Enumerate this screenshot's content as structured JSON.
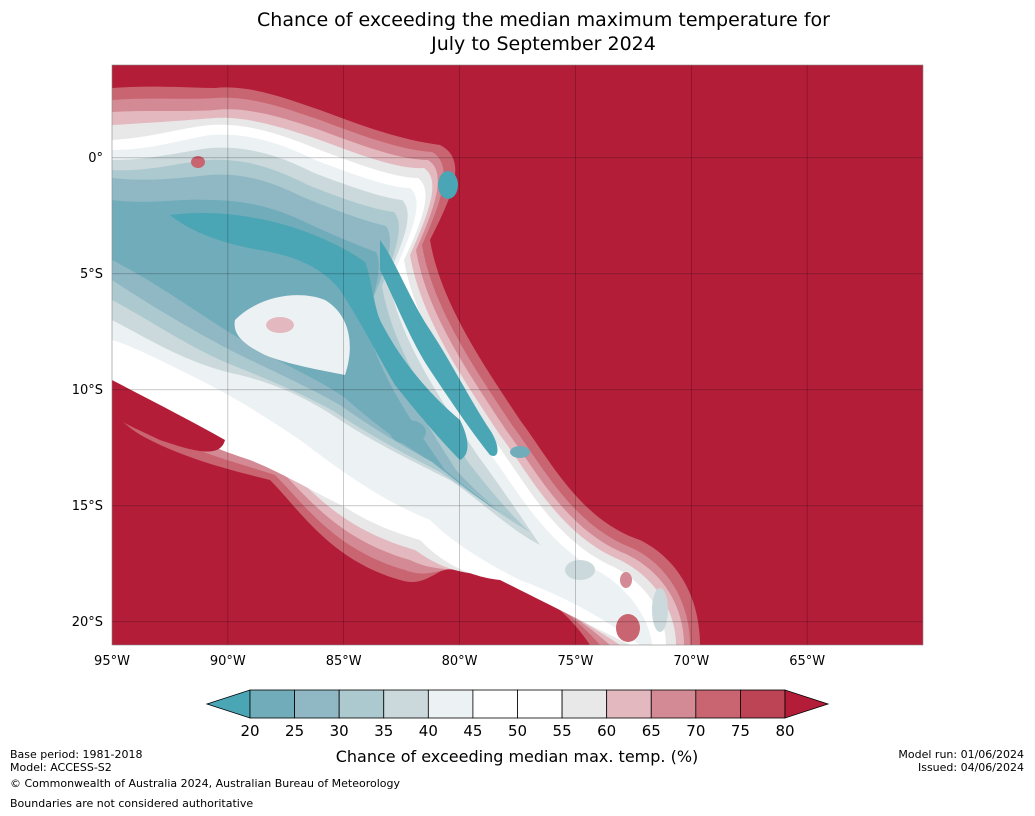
{
  "title_line1": "Chance of exceeding the median maximum temperature for",
  "title_line2": "July to September 2024",
  "chart_data": {
    "type": "heatmap",
    "title": "Chance of exceeding the median maximum temperature for July to September 2024",
    "x_ticks": [
      "95°W",
      "90°W",
      "85°W",
      "80°W",
      "75°W",
      "70°W",
      "65°W"
    ],
    "x_values": [
      -95,
      -90,
      -85,
      -80,
      -75,
      -70,
      -65
    ],
    "y_ticks": [
      "0°",
      "5°S",
      "10°S",
      "15°S",
      "20°S"
    ],
    "y_values": [
      0,
      -5,
      -10,
      -15,
      -20
    ],
    "xlim": [
      -95,
      -60
    ],
    "ylim": [
      -21,
      4
    ],
    "grid": true,
    "colorbar": {
      "label": "Chance of exceeding median max. temp. (%)",
      "ticks": [
        "20",
        "25",
        "30",
        "35",
        "40",
        "45",
        "50",
        "55",
        "60",
        "65",
        "70",
        "75",
        "80"
      ],
      "colors": [
        "#4aa5b5",
        "#71acba",
        "#8fb8c4",
        "#abc9ce",
        "#cbd9dc",
        "#ecf1f3",
        "#ffffff",
        "#ffffff",
        "#e8e8e8",
        "#e3b9bf",
        "#d48a94",
        "#c96571",
        "#bd4454",
        "#b31d38"
      ],
      "extend": "both"
    },
    "field_description_colors": {
      "high": "#b31d38",
      "low": "#4aa5b5"
    }
  },
  "footer": {
    "base_period": "Base period: 1981-2018",
    "model": "Model: ACCESS-S2",
    "copyright": "© Commonwealth of Australia 2024, Australian Bureau of Meteorology",
    "boundaries": "Boundaries are not considered authoritative",
    "model_run": "Model run: 01/06/2024",
    "issued": "Issued: 04/06/2024"
  }
}
